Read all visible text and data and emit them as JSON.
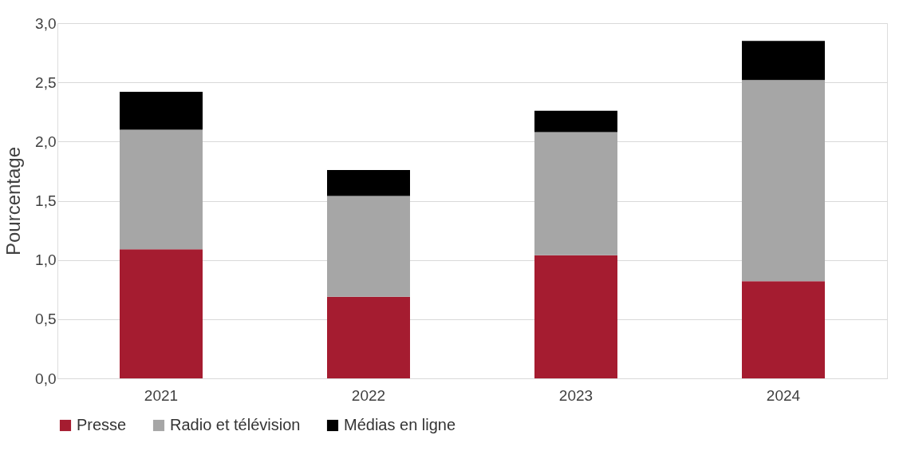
{
  "chart_data": {
    "type": "bar",
    "stacked": true,
    "ylabel": "Pourcentage",
    "categories": [
      "2021",
      "2022",
      "2023",
      "2024"
    ],
    "series": [
      {
        "name": "Presse",
        "color": "#a51c30",
        "values": [
          1.09,
          0.69,
          1.04,
          0.82
        ]
      },
      {
        "name": "Radio et télévision",
        "color": "#a6a6a6",
        "values": [
          1.01,
          0.85,
          1.04,
          1.7
        ]
      },
      {
        "name": "Médias en ligne",
        "color": "#000000",
        "values": [
          0.32,
          0.22,
          0.18,
          0.33
        ]
      }
    ],
    "ylim": [
      0,
      3
    ],
    "yticks": [
      {
        "value": 0,
        "label": "0,0"
      },
      {
        "value": 0.5,
        "label": "0,5"
      },
      {
        "value": 1,
        "label": "1,0"
      },
      {
        "value": 1.5,
        "label": "1,5"
      },
      {
        "value": 2,
        "label": "2,0"
      },
      {
        "value": 2.5,
        "label": "2,5"
      },
      {
        "value": 3,
        "label": "3,0"
      }
    ],
    "grid": "y",
    "legend": "bottom"
  }
}
